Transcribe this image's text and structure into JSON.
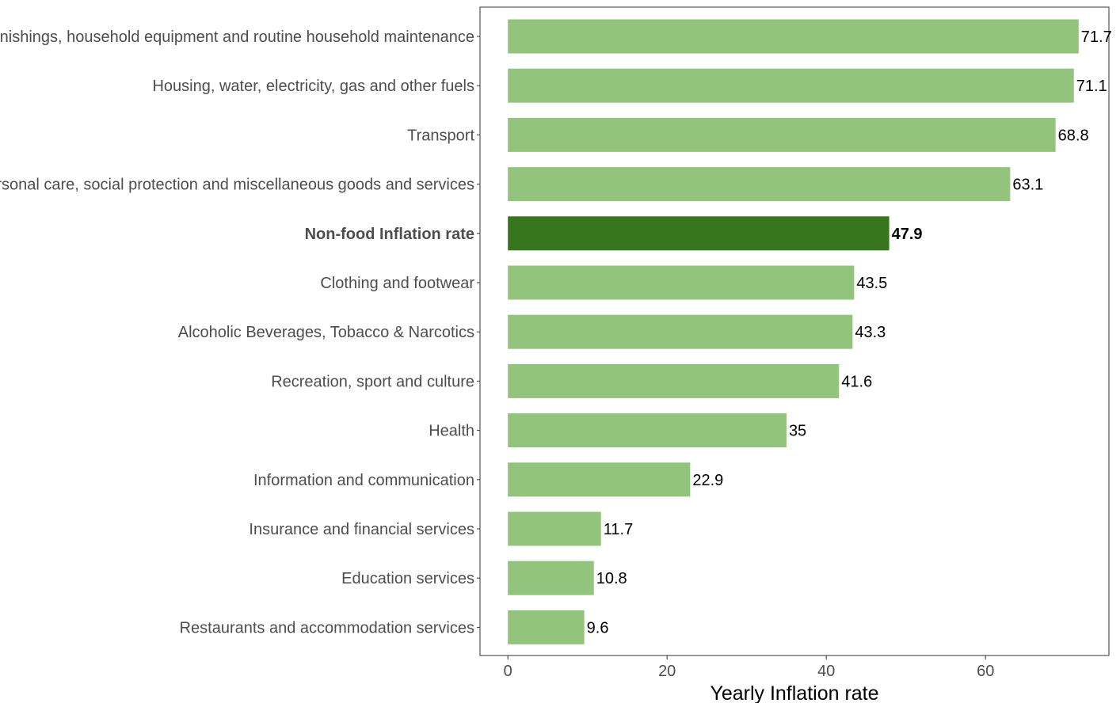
{
  "chart_data": {
    "type": "bar",
    "orientation": "horizontal",
    "categories": [
      "Furnishings, household equipment and routine household maintenance",
      "Housing, water, electricity, gas and other fuels",
      "Transport",
      "Personal care, social protection and miscellaneous goods and services",
      "Non-food Inflation rate",
      "Clothing and footwear",
      "Alcoholic Beverages, Tobacco & Narcotics",
      "Recreation, sport and culture",
      "Health",
      "Information and communication",
      "Insurance and financial services",
      "Education services",
      "Restaurants and accommodation services"
    ],
    "values": [
      71.7,
      71.1,
      68.8,
      63.1,
      47.9,
      43.5,
      43.3,
      41.6,
      35,
      22.9,
      11.7,
      10.8,
      9.6
    ],
    "value_labels": [
      "71.7",
      "71.1",
      "68.8",
      "63.1",
      "47.9",
      "43.5",
      "43.3",
      "41.6",
      "35",
      "22.9",
      "11.7",
      "10.8",
      "9.6"
    ],
    "highlight": "Non-food Inflation rate",
    "xlabel": "Yearly Inflation rate",
    "ylabel": "",
    "xlim": [
      -3.5,
      75.5
    ],
    "xticks": [
      0,
      20,
      40,
      60
    ],
    "xtick_labels": [
      "0",
      "20",
      "40",
      "60"
    ],
    "grid": false,
    "colors": {
      "bar": "#93c47d",
      "highlight_bar": "#38761d",
      "panel_border": "#333333",
      "tick": "#333333"
    }
  }
}
